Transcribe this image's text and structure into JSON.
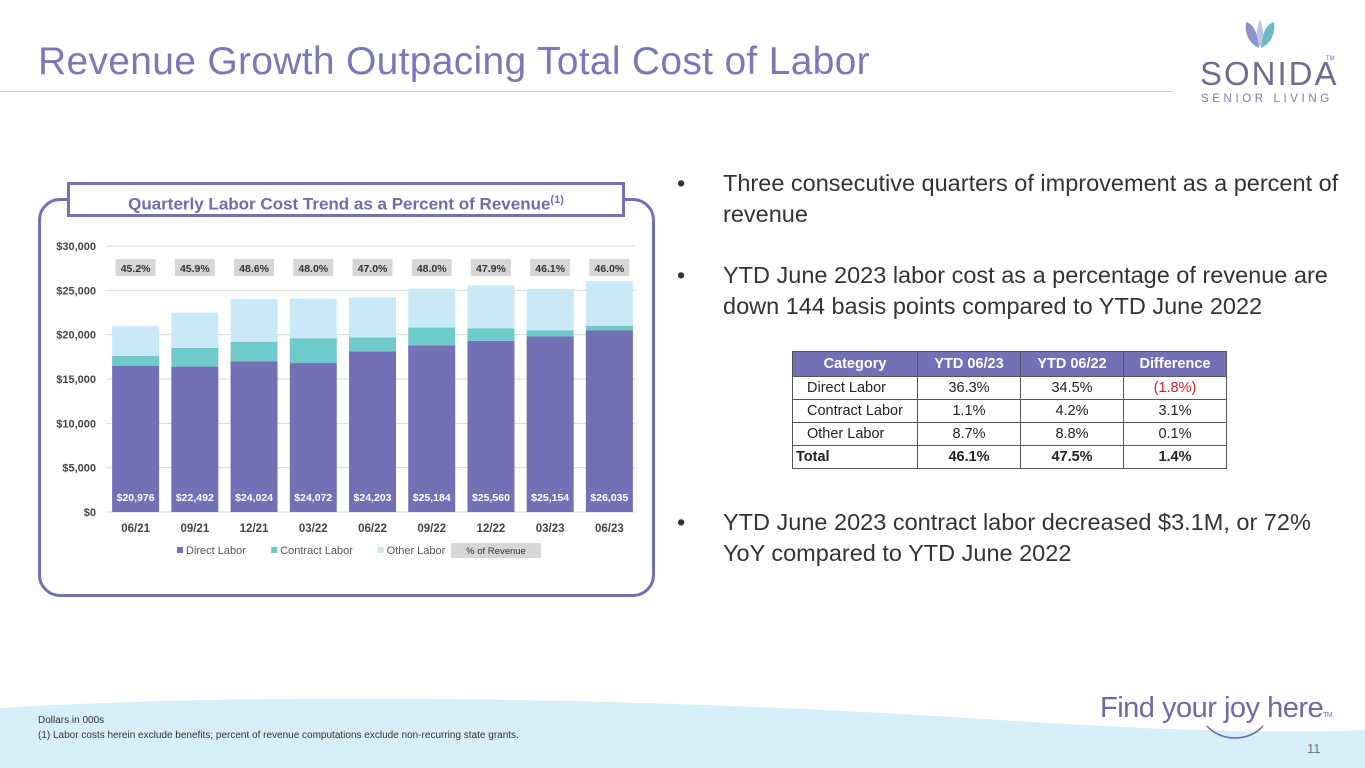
{
  "title": "Revenue Growth Outpacing Total Cost of Labor",
  "logo": {
    "word": "SONIDA",
    "tm": "TM",
    "sub": "SENIOR LIVING"
  },
  "chart_box": {
    "title": "Quarterly Labor Cost Trend as a Percent of Revenue",
    "title_sup": "(1)"
  },
  "chart_data": {
    "type": "bar",
    "stacked": true,
    "categories": [
      "06/21",
      "09/21",
      "12/21",
      "03/22",
      "06/22",
      "09/22",
      "12/22",
      "03/23",
      "06/23"
    ],
    "series": [
      {
        "name": "Direct Labor",
        "color": "#7271b5",
        "values": [
          16500,
          16400,
          17000,
          16800,
          18100,
          18800,
          19300,
          19800,
          20500
        ]
      },
      {
        "name": "Contract Labor",
        "color": "#6ecacb",
        "values": [
          1100,
          2100,
          2200,
          2800,
          1600,
          2000,
          1400,
          700,
          500
        ]
      },
      {
        "name": "Other Labor",
        "color": "#c9e9f7",
        "values": [
          3376,
          3992,
          4824,
          4472,
          4503,
          4384,
          4860,
          4654,
          5035
        ]
      }
    ],
    "totals": [
      "$20,976",
      "$22,492",
      "$24,024",
      "$24,072",
      "$24,203",
      "$25,184",
      "$25,560",
      "$25,154",
      "$26,035"
    ],
    "percent_of_revenue": [
      "45.2%",
      "45.9%",
      "48.6%",
      "48.0%",
      "47.0%",
      "48.0%",
      "47.9%",
      "46.1%",
      "46.0%"
    ],
    "y_ticks": [
      "$0",
      "$5,000",
      "$10,000",
      "$15,000",
      "$20,000",
      "$25,000",
      "$30,000"
    ],
    "ylim": [
      0,
      30000
    ],
    "legend_extra": "% of Revenue",
    "legend_position": "bottom"
  },
  "bullets": [
    "Three consecutive quarters of improvement as a percent of revenue",
    "YTD June 2023 labor cost as a percentage of revenue are down 144 basis points compared to YTD June 2022",
    "YTD June 2023 contract labor decreased $3.1M, or 72% YoY compared to YTD June 2022"
  ],
  "table": {
    "headers": [
      "Category",
      "YTD 06/23",
      "YTD 06/22",
      "Difference"
    ],
    "rows": [
      [
        "Direct Labor",
        "36.3%",
        "34.5%",
        "(1.8%)"
      ],
      [
        "Contract Labor",
        "1.1%",
        "4.2%",
        "3.1%"
      ],
      [
        "Other Labor",
        "8.7%",
        "8.8%",
        "0.1%"
      ],
      [
        "Total",
        "46.1%",
        "47.5%",
        "1.4%"
      ]
    ]
  },
  "footer": {
    "note1": "Dollars in 000s",
    "note2": "(1) Labor costs herein exclude benefits; percent of revenue computations exclude non-recurring state grants.",
    "tagline": "Find your joy here",
    "tagline_tm": "TM",
    "page": "11"
  },
  "colors": {
    "accent": "#7271b5",
    "teal": "#6ecacb",
    "light_blue": "#c9e9f7",
    "title": "#7b78b8",
    "negative": "#d42020"
  }
}
